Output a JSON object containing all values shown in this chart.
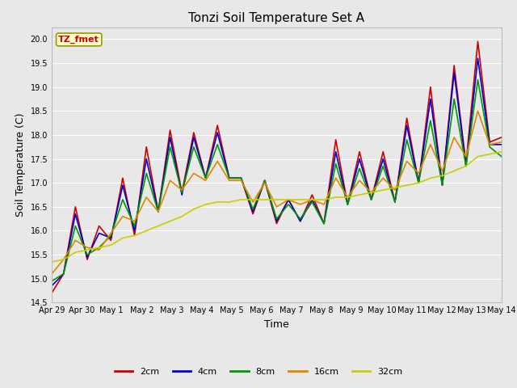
{
  "title": "Tonzi Soil Temperature Set A",
  "xlabel": "Time",
  "ylabel": "Soil Temperature (C)",
  "annotation": "TZ_fmet",
  "ylim": [
    14.5,
    20.25
  ],
  "fig_bg_color": "#e8e8e8",
  "plot_bg_color": "#e8e8e8",
  "grid_color": "#ffffff",
  "colors": {
    "2cm": "#cc0000",
    "4cm": "#0000cc",
    "8cm": "#009900",
    "16cm": "#dd8800",
    "32cm": "#cccc00"
  },
  "legend_labels": [
    "2cm",
    "4cm",
    "8cm",
    "16cm",
    "32cm"
  ],
  "x_tick_labels": [
    "Apr 29",
    "Apr 30",
    "May 1",
    "May 2",
    "May 3",
    "May 4",
    "May 5",
    "May 6",
    "May 7",
    "May 8",
    "May 9",
    "May 10",
    "May 11",
    "May 12",
    "May 13",
    "May 14"
  ],
  "series": {
    "2cm": [
      14.7,
      15.1,
      16.5,
      15.4,
      16.1,
      15.8,
      17.1,
      15.9,
      17.75,
      16.4,
      18.1,
      16.8,
      18.05,
      17.1,
      18.2,
      17.1,
      17.1,
      16.35,
      17.05,
      16.15,
      16.65,
      16.2,
      16.75,
      16.15,
      17.9,
      16.55,
      17.65,
      16.65,
      17.65,
      16.6,
      18.35,
      17.0,
      19.0,
      16.95,
      19.45,
      17.4,
      19.95,
      17.85,
      17.95
    ],
    "4cm": [
      14.85,
      15.1,
      16.35,
      15.45,
      15.95,
      15.85,
      16.95,
      16.0,
      17.5,
      16.4,
      17.95,
      16.75,
      17.95,
      17.1,
      18.05,
      17.1,
      17.1,
      16.4,
      17.05,
      16.2,
      16.65,
      16.2,
      16.65,
      16.15,
      17.65,
      16.55,
      17.5,
      16.65,
      17.5,
      16.6,
      18.2,
      17.0,
      18.75,
      16.95,
      19.3,
      17.35,
      19.6,
      17.8,
      17.8
    ],
    "8cm": [
      14.95,
      15.1,
      16.1,
      15.5,
      15.65,
      15.9,
      16.65,
      16.1,
      17.2,
      16.4,
      17.75,
      16.8,
      17.75,
      17.1,
      17.8,
      17.1,
      17.1,
      16.45,
      17.05,
      16.25,
      16.55,
      16.25,
      16.6,
      16.15,
      17.4,
      16.55,
      17.3,
      16.65,
      17.35,
      16.6,
      17.9,
      17.0,
      18.3,
      16.95,
      18.75,
      17.35,
      19.15,
      17.75,
      17.55
    ],
    "16cm": [
      15.1,
      15.4,
      15.8,
      15.65,
      15.6,
      15.95,
      16.3,
      16.2,
      16.7,
      16.4,
      17.05,
      16.85,
      17.2,
      17.05,
      17.45,
      17.05,
      17.05,
      16.6,
      17.0,
      16.5,
      16.65,
      16.55,
      16.65,
      16.55,
      17.1,
      16.7,
      17.05,
      16.8,
      17.1,
      16.85,
      17.45,
      17.2,
      17.8,
      17.25,
      17.95,
      17.55,
      18.5,
      17.8,
      17.85
    ],
    "32cm": [
      15.35,
      15.4,
      15.55,
      15.6,
      15.65,
      15.7,
      15.85,
      15.9,
      16.0,
      16.1,
      16.2,
      16.3,
      16.45,
      16.55,
      16.6,
      16.6,
      16.65,
      16.65,
      16.65,
      16.65,
      16.65,
      16.65,
      16.65,
      16.65,
      16.7,
      16.7,
      16.75,
      16.8,
      16.85,
      16.9,
      16.95,
      17.0,
      17.1,
      17.15,
      17.25,
      17.35,
      17.55,
      17.6,
      17.65
    ]
  }
}
